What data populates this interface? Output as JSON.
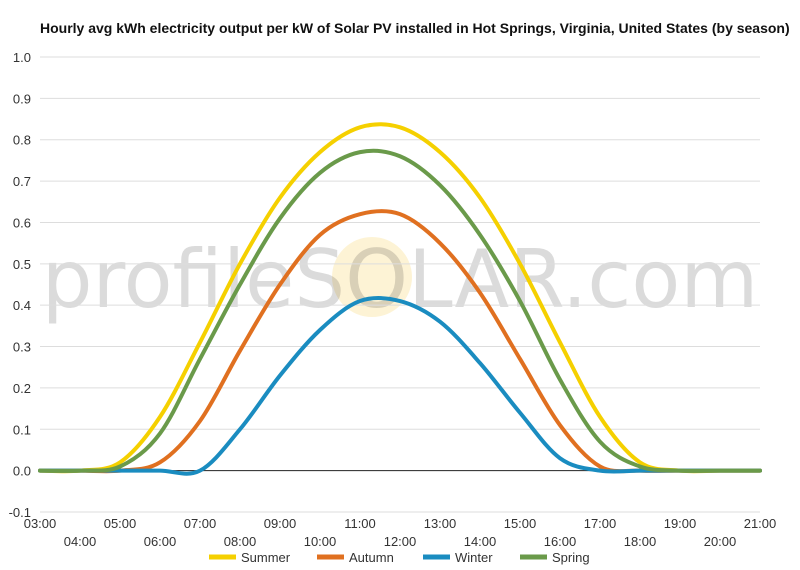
{
  "chart_data": {
    "type": "line",
    "title": "Hourly avg kWh electricity output per kW of Solar PV installed in Hot Springs, Virginia, United States (by season)",
    "xlabel": "",
    "ylabel": "",
    "x_tick_labels": [
      "03:00",
      "04:00",
      "05:00",
      "06:00",
      "07:00",
      "08:00",
      "09:00",
      "10:00",
      "11:00",
      "12:00",
      "13:00",
      "14:00",
      "15:00",
      "16:00",
      "17:00",
      "18:00",
      "19:00",
      "20:00",
      "21:00"
    ],
    "y_tick_labels": [
      "1.0",
      "0.9",
      "0.8",
      "0.7",
      "0.6",
      "0.5",
      "0.4",
      "0.3",
      "0.2",
      "0.1",
      "0.0",
      "-0.1"
    ],
    "ylim": [
      -0.1,
      1.0
    ],
    "xlim": [
      3,
      21
    ],
    "grid": true,
    "legend_position": "bottom",
    "watermark": "profileSOLAR.com",
    "x": [
      3,
      4,
      5,
      6,
      7,
      8,
      9,
      10,
      11,
      12,
      13,
      14,
      15,
      16,
      17,
      18,
      19,
      20,
      21
    ],
    "series": [
      {
        "name": "Summer",
        "color": "#f5d000",
        "values": [
          0.0,
          0.0,
          0.02,
          0.13,
          0.31,
          0.5,
          0.66,
          0.77,
          0.83,
          0.83,
          0.77,
          0.66,
          0.5,
          0.31,
          0.13,
          0.02,
          0.0,
          0.0,
          0.0
        ]
      },
      {
        "name": "Autumn",
        "color": "#e07020",
        "values": [
          0.0,
          0.0,
          0.0,
          0.02,
          0.12,
          0.29,
          0.45,
          0.57,
          0.62,
          0.62,
          0.55,
          0.43,
          0.27,
          0.11,
          0.01,
          0.0,
          0.0,
          0.0,
          0.0
        ]
      },
      {
        "name": "Winter",
        "color": "#1a8cc0",
        "values": [
          0.0,
          0.0,
          0.0,
          0.0,
          0.0,
          0.1,
          0.23,
          0.34,
          0.41,
          0.41,
          0.36,
          0.26,
          0.14,
          0.03,
          0.0,
          0.0,
          0.0,
          0.0,
          0.0
        ]
      },
      {
        "name": "Spring",
        "color": "#6a9a4a",
        "values": [
          0.0,
          0.0,
          0.01,
          0.09,
          0.27,
          0.45,
          0.61,
          0.72,
          0.77,
          0.76,
          0.69,
          0.57,
          0.41,
          0.22,
          0.07,
          0.01,
          0.0,
          0.0,
          0.0
        ]
      }
    ]
  }
}
